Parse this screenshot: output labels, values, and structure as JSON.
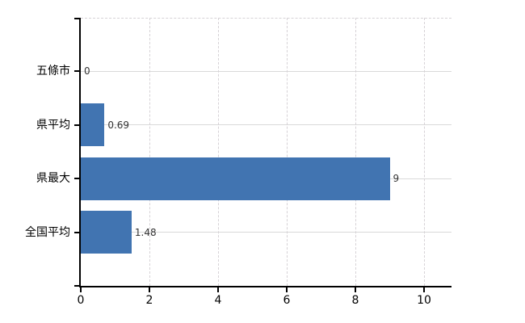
{
  "chart_data": {
    "type": "bar",
    "orientation": "horizontal",
    "title": "",
    "xlabel": "",
    "ylabel": "",
    "categories": [
      "五條市",
      "県平均",
      "県最大",
      "全国平均"
    ],
    "values": [
      0,
      0.69,
      9,
      1.48
    ],
    "value_labels": [
      "0",
      "0.69",
      "9",
      "1.48"
    ],
    "x_ticks": [
      0,
      2,
      4,
      6,
      8,
      10
    ],
    "x_tick_labels": [
      "0",
      "2",
      "4",
      "6",
      "8",
      "10"
    ],
    "xlim": [
      0,
      10.8
    ],
    "legend": "none",
    "grid": {
      "vertical_style": "dashed",
      "horizontal_style": "solid",
      "top_border_style": "dashed"
    },
    "colors": {
      "bar": "#4174b1",
      "gridline_horizontal": "#d9d9d9",
      "gridline_vertical": "#d6d2d6",
      "axis": "#000000",
      "category_text": "#000000",
      "value_text": "#333333",
      "background": "#ffffff"
    }
  }
}
